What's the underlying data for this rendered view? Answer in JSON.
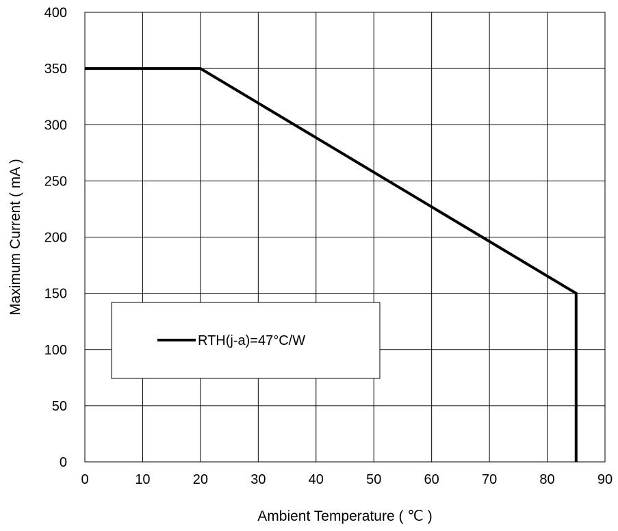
{
  "chart_data": {
    "type": "line",
    "title": "",
    "xlabel": "Ambient Temperature ( ℃ )",
    "ylabel": "Maximum Current ( mA )",
    "xlim": [
      0,
      90
    ],
    "ylim": [
      0,
      400
    ],
    "x_ticks": [
      "0",
      "10",
      "20",
      "30",
      "40",
      "50",
      "60",
      "70",
      "80",
      "90"
    ],
    "y_ticks": [
      "0",
      "50",
      "100",
      "150",
      "200",
      "250",
      "300",
      "350",
      "400"
    ],
    "grid": true,
    "legend_position": "center-left",
    "series": [
      {
        "name": "RTH(j-a)=47°C/W",
        "color": "#000000",
        "points": [
          {
            "x": 0,
            "y": 350
          },
          {
            "x": 20,
            "y": 350
          },
          {
            "x": 85,
            "y": 150
          },
          {
            "x": 85,
            "y": 0
          }
        ]
      }
    ]
  }
}
